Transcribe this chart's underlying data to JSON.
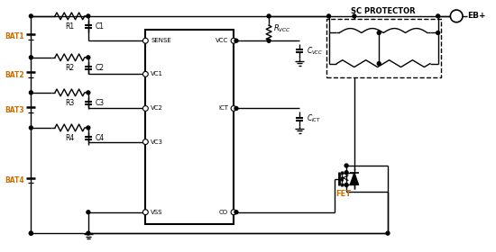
{
  "bg_color": "#ffffff",
  "line_color": "#000000",
  "label_color_bat": "#c87000",
  "label_color_fet": "#c87000",
  "figsize": [
    5.5,
    2.8
  ],
  "dpi": 100,
  "bat_labels": [
    "BAT1",
    "BAT2",
    "BAT3",
    "BAT4"
  ],
  "r_labels": [
    "R1",
    "R2",
    "R3",
    "R4"
  ],
  "c_labels": [
    "C1",
    "C2",
    "C3",
    "C4"
  ],
  "ic_pins_left": [
    "SENSE",
    "VC1",
    "VC2",
    "VC3",
    "VSS"
  ],
  "ic_pins_right": [
    "VCC",
    "ICT",
    "CO"
  ],
  "sc_protector_label": "SC PROTECTOR",
  "eb_label": "EB+",
  "fet_label": "FET",
  "lw": 1.0
}
